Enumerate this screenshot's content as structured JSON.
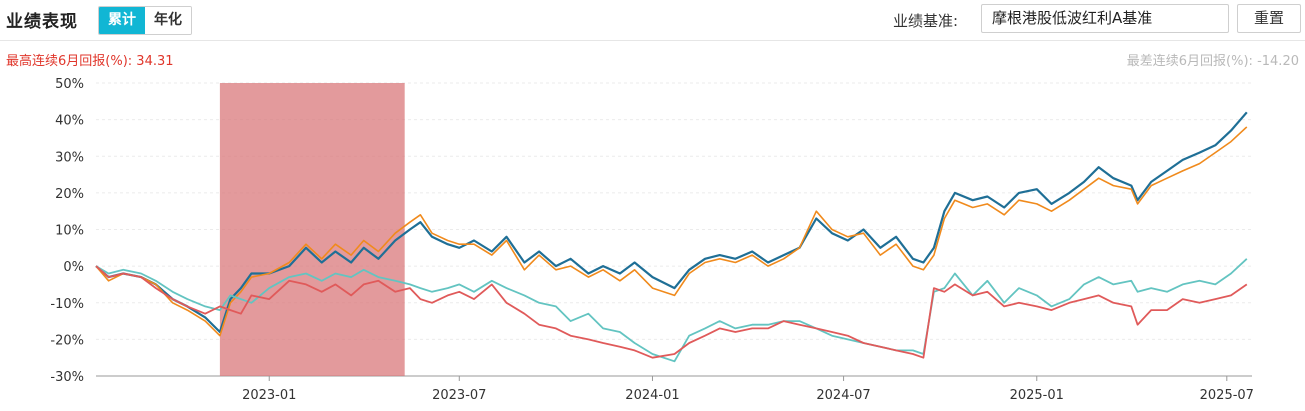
{
  "header": {
    "title": "业绩表现",
    "tabs": [
      {
        "label": "累计",
        "active": true
      },
      {
        "label": "年化",
        "active": false
      }
    ],
    "benchmark_label": "业绩基准:",
    "benchmark_value": "摩根港股低波红利A基准",
    "reset_label": "重置"
  },
  "stats": {
    "best_label": "最高连续6月回报(%):",
    "best_value": "34.31",
    "worst_label": "最差连续6月回报(%):",
    "worst_value": "-14.20"
  },
  "colors": {
    "accent": "#11b6d4",
    "highlight": "#d9787b",
    "dark_blue": "#1f6f96",
    "orange": "#f08a1c",
    "teal": "#63c4c1",
    "red": "#e05a5a",
    "best_text": "#e0362b"
  },
  "chart_data": {
    "type": "line",
    "x_type": "date",
    "x_ticks": [
      "2023-01",
      "2023-07",
      "2024-01",
      "2024-07",
      "2025-01",
      "2025-07"
    ],
    "y_ticks": [
      "50%",
      "40%",
      "30%",
      "20%",
      "10%",
      "0%",
      "-10%",
      "-20%",
      "-30%"
    ],
    "ylim": [
      -30,
      50
    ],
    "xlim": [
      "2022-07-20",
      "2025-07-25"
    ],
    "highlight_range": [
      "2022-11-15",
      "2023-05-10"
    ],
    "grid": true,
    "series": [
      {
        "color": "#1f6f96",
        "width": 2.2,
        "x": [
          "2022-07-20",
          "2022-08-01",
          "2022-08-15",
          "2022-09-01",
          "2022-09-15",
          "2022-10-01",
          "2022-10-15",
          "2022-11-01",
          "2022-11-15",
          "2022-11-25",
          "2022-12-05",
          "2022-12-15",
          "2023-01-01",
          "2023-01-20",
          "2023-02-05",
          "2023-02-20",
          "2023-03-05",
          "2023-03-20",
          "2023-04-01",
          "2023-04-15",
          "2023-05-01",
          "2023-05-15",
          "2023-05-25",
          "2023-06-05",
          "2023-06-20",
          "2023-07-01",
          "2023-07-15",
          "2023-08-01",
          "2023-08-15",
          "2023-09-01",
          "2023-09-15",
          "2023-10-01",
          "2023-10-15",
          "2023-11-01",
          "2023-11-15",
          "2023-12-01",
          "2023-12-15",
          "2024-01-01",
          "2024-01-22",
          "2024-02-05",
          "2024-02-20",
          "2024-03-05",
          "2024-03-20",
          "2024-04-05",
          "2024-04-20",
          "2024-05-05",
          "2024-05-20",
          "2024-06-05",
          "2024-06-20",
          "2024-07-05",
          "2024-07-20",
          "2024-08-05",
          "2024-08-20",
          "2024-09-05",
          "2024-09-15",
          "2024-09-25",
          "2024-10-05",
          "2024-10-15",
          "2024-11-01",
          "2024-11-15",
          "2024-12-01",
          "2024-12-15",
          "2025-01-01",
          "2025-01-15",
          "2025-02-01",
          "2025-02-15",
          "2025-03-01",
          "2025-03-15",
          "2025-04-01",
          "2025-04-07",
          "2025-04-20",
          "2025-05-05",
          "2025-05-20",
          "2025-06-05",
          "2025-06-20",
          "2025-07-05",
          "2025-07-20"
        ],
        "y": [
          0,
          -3,
          -2,
          -3,
          -5,
          -9,
          -11,
          -14,
          -18,
          -9,
          -6,
          -2,
          -2,
          0,
          5,
          1,
          4,
          1,
          5,
          2,
          7,
          10,
          12,
          8,
          6,
          5,
          7,
          4,
          8,
          1,
          4,
          0,
          2,
          -2,
          0,
          -2,
          1,
          -3,
          -6,
          -1,
          2,
          3,
          2,
          4,
          1,
          3,
          5,
          13,
          9,
          7,
          10,
          5,
          8,
          2,
          1,
          5,
          15,
          20,
          18,
          19,
          16,
          20,
          21,
          17,
          20,
          23,
          27,
          24,
          22,
          18,
          23,
          26,
          29,
          31,
          33,
          37,
          42
        ]
      },
      {
        "color": "#f08a1c",
        "width": 1.6,
        "x": [
          "2022-07-20",
          "2022-08-01",
          "2022-08-15",
          "2022-09-01",
          "2022-09-15",
          "2022-10-01",
          "2022-10-15",
          "2022-11-01",
          "2022-11-15",
          "2022-11-25",
          "2022-12-05",
          "2022-12-15",
          "2023-01-01",
          "2023-01-20",
          "2023-02-05",
          "2023-02-20",
          "2023-03-05",
          "2023-03-20",
          "2023-04-01",
          "2023-04-15",
          "2023-05-01",
          "2023-05-15",
          "2023-05-25",
          "2023-06-05",
          "2023-06-20",
          "2023-07-01",
          "2023-07-15",
          "2023-08-01",
          "2023-08-15",
          "2023-09-01",
          "2023-09-15",
          "2023-10-01",
          "2023-10-15",
          "2023-11-01",
          "2023-11-15",
          "2023-12-01",
          "2023-12-15",
          "2024-01-01",
          "2024-01-22",
          "2024-02-05",
          "2024-02-20",
          "2024-03-05",
          "2024-03-20",
          "2024-04-05",
          "2024-04-20",
          "2024-05-05",
          "2024-05-20",
          "2024-06-05",
          "2024-06-20",
          "2024-07-05",
          "2024-07-20",
          "2024-08-05",
          "2024-08-20",
          "2024-09-05",
          "2024-09-15",
          "2024-09-25",
          "2024-10-05",
          "2024-10-15",
          "2024-11-01",
          "2024-11-15",
          "2024-12-01",
          "2024-12-15",
          "2025-01-01",
          "2025-01-15",
          "2025-02-01",
          "2025-02-15",
          "2025-03-01",
          "2025-03-15",
          "2025-04-01",
          "2025-04-07",
          "2025-04-20",
          "2025-05-05",
          "2025-05-20",
          "2025-06-05",
          "2025-06-20",
          "2025-07-05",
          "2025-07-20"
        ],
        "y": [
          0,
          -4,
          -2,
          -3,
          -5,
          -10,
          -12,
          -15,
          -19,
          -10,
          -7,
          -3,
          -2,
          1,
          6,
          2,
          6,
          3,
          7,
          4,
          9,
          12,
          14,
          9,
          7,
          6,
          6,
          3,
          7,
          -1,
          3,
          -1,
          0,
          -3,
          -1,
          -4,
          -1,
          -6,
          -8,
          -2,
          1,
          2,
          1,
          3,
          0,
          2,
          5,
          15,
          10,
          8,
          9,
          3,
          6,
          0,
          -1,
          3,
          13,
          18,
          16,
          17,
          14,
          18,
          17,
          15,
          18,
          21,
          24,
          22,
          21,
          17,
          22,
          24,
          26,
          28,
          31,
          34,
          38
        ]
      },
      {
        "color": "#63c4c1",
        "width": 1.8,
        "x": [
          "2022-07-20",
          "2022-08-01",
          "2022-08-15",
          "2022-09-01",
          "2022-09-15",
          "2022-10-01",
          "2022-10-15",
          "2022-11-01",
          "2022-11-15",
          "2022-11-25",
          "2022-12-05",
          "2022-12-15",
          "2023-01-01",
          "2023-01-20",
          "2023-02-05",
          "2023-02-20",
          "2023-03-05",
          "2023-03-20",
          "2023-04-01",
          "2023-04-15",
          "2023-05-01",
          "2023-05-15",
          "2023-05-25",
          "2023-06-05",
          "2023-06-20",
          "2023-07-01",
          "2023-07-15",
          "2023-08-01",
          "2023-08-15",
          "2023-09-01",
          "2023-09-15",
          "2023-10-01",
          "2023-10-15",
          "2023-11-01",
          "2023-11-15",
          "2023-12-01",
          "2023-12-15",
          "2024-01-01",
          "2024-01-22",
          "2024-02-05",
          "2024-02-20",
          "2024-03-05",
          "2024-03-20",
          "2024-04-05",
          "2024-04-20",
          "2024-05-05",
          "2024-05-20",
          "2024-06-05",
          "2024-06-20",
          "2024-07-05",
          "2024-07-20",
          "2024-08-05",
          "2024-08-20",
          "2024-09-05",
          "2024-09-15",
          "2024-09-25",
          "2024-10-05",
          "2024-10-15",
          "2024-11-01",
          "2024-11-15",
          "2024-12-01",
          "2024-12-15",
          "2025-01-01",
          "2025-01-15",
          "2025-02-01",
          "2025-02-15",
          "2025-03-01",
          "2025-03-15",
          "2025-04-01",
          "2025-04-07",
          "2025-04-20",
          "2025-05-05",
          "2025-05-20",
          "2025-06-05",
          "2025-06-20",
          "2025-07-05",
          "2025-07-20"
        ],
        "y": [
          0,
          -2,
          -1,
          -2,
          -4,
          -7,
          -9,
          -11,
          -12,
          -8,
          -9,
          -10,
          -6,
          -3,
          -2,
          -4,
          -2,
          -3,
          -1,
          -3,
          -4,
          -5,
          -6,
          -7,
          -6,
          -5,
          -7,
          -4,
          -6,
          -8,
          -10,
          -11,
          -15,
          -13,
          -17,
          -18,
          -21,
          -24,
          -26,
          -19,
          -17,
          -15,
          -17,
          -16,
          -16,
          -15,
          -15,
          -17,
          -19,
          -20,
          -21,
          -22,
          -23,
          -23,
          -24,
          -7,
          -6,
          -2,
          -8,
          -4,
          -10,
          -6,
          -8,
          -11,
          -9,
          -5,
          -3,
          -5,
          -4,
          -7,
          -6,
          -7,
          -5,
          -4,
          -5,
          -2,
          2
        ]
      },
      {
        "color": "#e05a5a",
        "width": 1.8,
        "x": [
          "2022-07-20",
          "2022-08-01",
          "2022-08-15",
          "2022-09-01",
          "2022-09-15",
          "2022-10-01",
          "2022-10-15",
          "2022-11-01",
          "2022-11-15",
          "2022-11-25",
          "2022-12-05",
          "2022-12-15",
          "2023-01-01",
          "2023-01-20",
          "2023-02-05",
          "2023-02-20",
          "2023-03-05",
          "2023-03-20",
          "2023-04-01",
          "2023-04-15",
          "2023-05-01",
          "2023-05-15",
          "2023-05-25",
          "2023-06-05",
          "2023-06-20",
          "2023-07-01",
          "2023-07-15",
          "2023-08-01",
          "2023-08-15",
          "2023-09-01",
          "2023-09-15",
          "2023-10-01",
          "2023-10-15",
          "2023-11-01",
          "2023-11-15",
          "2023-12-01",
          "2023-12-15",
          "2024-01-01",
          "2024-01-22",
          "2024-02-05",
          "2024-02-20",
          "2024-03-05",
          "2024-03-20",
          "2024-04-05",
          "2024-04-20",
          "2024-05-05",
          "2024-05-20",
          "2024-06-05",
          "2024-06-20",
          "2024-07-05",
          "2024-07-20",
          "2024-08-05",
          "2024-08-20",
          "2024-09-05",
          "2024-09-15",
          "2024-09-25",
          "2024-10-05",
          "2024-10-15",
          "2024-11-01",
          "2024-11-15",
          "2024-12-01",
          "2024-12-15",
          "2025-01-01",
          "2025-01-15",
          "2025-02-01",
          "2025-02-15",
          "2025-03-01",
          "2025-03-15",
          "2025-04-01",
          "2025-04-07",
          "2025-04-20",
          "2025-05-05",
          "2025-05-20",
          "2025-06-05",
          "2025-06-20",
          "2025-07-05",
          "2025-07-20"
        ],
        "y": [
          0,
          -3,
          -2,
          -3,
          -6,
          -9,
          -11,
          -13,
          -11,
          -12,
          -13,
          -8,
          -9,
          -4,
          -5,
          -7,
          -5,
          -8,
          -5,
          -4,
          -7,
          -6,
          -9,
          -10,
          -8,
          -7,
          -9,
          -5,
          -10,
          -13,
          -16,
          -17,
          -19,
          -20,
          -21,
          -22,
          -23,
          -25,
          -24,
          -21,
          -19,
          -17,
          -18,
          -17,
          -17,
          -15,
          -16,
          -17,
          -18,
          -19,
          -21,
          -22,
          -23,
          -24,
          -25,
          -6,
          -7,
          -5,
          -8,
          -7,
          -11,
          -10,
          -11,
          -12,
          -10,
          -9,
          -8,
          -10,
          -11,
          -16,
          -12,
          -12,
          -9,
          -10,
          -9,
          -8,
          -5
        ]
      }
    ]
  }
}
